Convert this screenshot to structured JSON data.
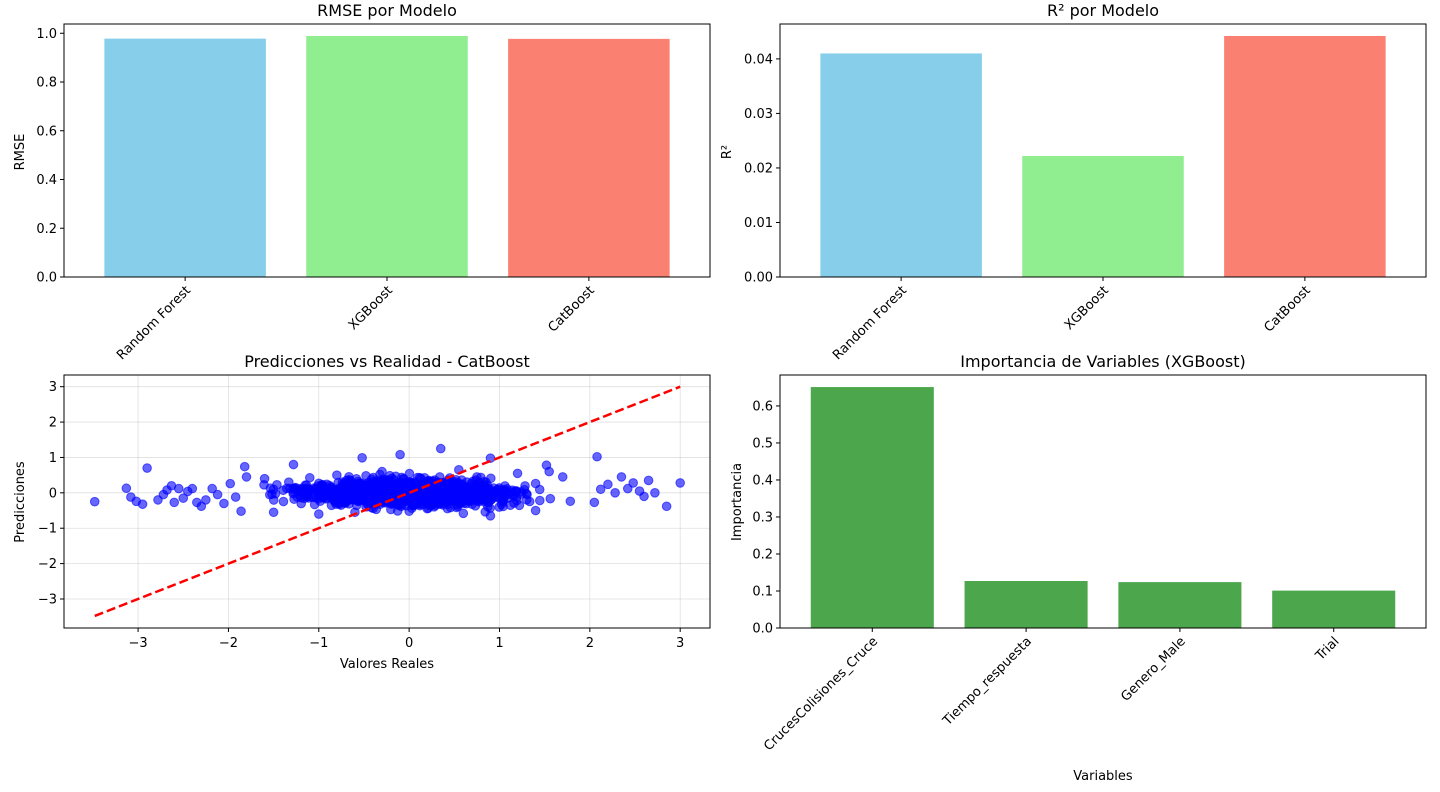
{
  "chart_data": [
    {
      "type": "bar",
      "title": "RMSE por Modelo",
      "xlabel": "",
      "ylabel": "RMSE",
      "categories": [
        "Random Forest",
        "XGBoost",
        "CatBoost"
      ],
      "values": [
        0.978,
        0.989,
        0.977
      ],
      "colors": [
        "#87CEEB",
        "#90EE90",
        "#FA8072"
      ],
      "ylim": [
        0,
        1.038
      ],
      "yticks": [
        0.0,
        0.2,
        0.4,
        0.6,
        0.8,
        1.0
      ],
      "ytick_labels": [
        "0.0",
        "0.2",
        "0.4",
        "0.6",
        "0.8",
        "1.0"
      ]
    },
    {
      "type": "bar",
      "title": "R² por Modelo",
      "xlabel": "",
      "ylabel": "R²",
      "categories": [
        "Random Forest",
        "XGBoost",
        "CatBoost"
      ],
      "values": [
        0.041,
        0.0222,
        0.0442
      ],
      "colors": [
        "#87CEEB",
        "#90EE90",
        "#FA8072"
      ],
      "ylim": [
        0,
        0.0464
      ],
      "yticks": [
        0.0,
        0.01,
        0.02,
        0.03,
        0.04
      ],
      "ytick_labels": [
        "0.00",
        "0.01",
        "0.02",
        "0.03",
        "0.04"
      ]
    },
    {
      "type": "scatter",
      "title": "Predicciones vs Realidad - CatBoost",
      "xlabel": "Valores Reales",
      "ylabel": "Predicciones",
      "xlim": [
        -3.82,
        3.33
      ],
      "ylim": [
        -3.82,
        3.33
      ],
      "xticks": [
        -3,
        -2,
        -1,
        0,
        1,
        2,
        3
      ],
      "yticks": [
        -3,
        -2,
        -1,
        0,
        1,
        2,
        3
      ],
      "xtick_labels": [
        "−3",
        "−2",
        "−1",
        "0",
        "1",
        "2",
        "3"
      ],
      "ytick_labels": [
        "−3",
        "−2",
        "−1",
        "0",
        "1",
        "2",
        "3"
      ],
      "grid": true,
      "point_color": "#0000FF",
      "reference_line": {
        "x": [
          -3.48,
          3.0
        ],
        "y": [
          -3.48,
          3.0
        ],
        "color": "#FF0000",
        "style": "dashed"
      },
      "points": [
        [
          -3.48,
          -0.25
        ],
        [
          -3.13,
          0.13
        ],
        [
          -3.08,
          -0.12
        ],
        [
          -3.02,
          -0.24
        ],
        [
          -2.95,
          -0.32
        ],
        [
          -2.9,
          0.7
        ],
        [
          -2.78,
          -0.2
        ],
        [
          -2.72,
          -0.05
        ],
        [
          -2.68,
          0.08
        ],
        [
          -2.63,
          0.2
        ],
        [
          -2.6,
          -0.27
        ],
        [
          -2.55,
          0.12
        ],
        [
          -2.5,
          -0.15
        ],
        [
          -2.45,
          0.04
        ],
        [
          -2.4,
          0.12
        ],
        [
          -2.35,
          -0.27
        ],
        [
          -2.3,
          -0.38
        ],
        [
          -2.25,
          -0.2
        ],
        [
          -2.18,
          0.12
        ],
        [
          -2.12,
          -0.05
        ],
        [
          -2.05,
          -0.3
        ],
        [
          -1.98,
          0.26
        ],
        [
          -1.92,
          -0.12
        ],
        [
          -1.86,
          -0.52
        ],
        [
          -1.82,
          0.74
        ],
        [
          -1.8,
          0.45
        ],
        [
          -1.28,
          0.8
        ],
        [
          -0.52,
          0.99
        ],
        [
          -0.35,
          0.1
        ],
        [
          -0.1,
          1.08
        ],
        [
          0.35,
          1.25
        ],
        [
          0.55,
          0.65
        ],
        [
          0.85,
          0.3
        ],
        [
          0.9,
          0.98
        ],
        [
          1.52,
          0.78
        ],
        [
          1.55,
          0.6
        ],
        [
          2.08,
          1.02
        ],
        [
          2.05,
          -0.27
        ],
        [
          2.12,
          0.1
        ],
        [
          2.2,
          0.24
        ],
        [
          2.28,
          0.0
        ],
        [
          2.35,
          0.45
        ],
        [
          2.42,
          0.12
        ],
        [
          2.48,
          0.28
        ],
        [
          2.55,
          0.05
        ],
        [
          2.6,
          -0.1
        ],
        [
          2.65,
          0.35
        ],
        [
          2.72,
          0.0
        ],
        [
          2.85,
          -0.38
        ],
        [
          3.0,
          0.28
        ],
        [
          0.0,
          -0.52
        ],
        [
          -0.6,
          -0.55
        ],
        [
          0.6,
          -0.58
        ],
        [
          0.9,
          -0.65
        ],
        [
          -1.0,
          -0.6
        ],
        [
          -1.5,
          -0.55
        ],
        [
          1.4,
          -0.5
        ],
        [
          0.2,
          -0.45
        ],
        [
          -0.3,
          0.6
        ],
        [
          0.75,
          0.45
        ],
        [
          -0.8,
          0.5
        ],
        [
          1.2,
          0.55
        ],
        [
          -1.6,
          0.4
        ],
        [
          1.7,
          0.45
        ],
        [
          0.45,
          0.42
        ]
      ],
      "cloud": {
        "x_range": [
          -2.0,
          2.0
        ],
        "y_center": 0.0,
        "y_spread": 0.32,
        "count": 1500
      }
    },
    {
      "type": "bar",
      "title": "Importancia de Variables (XGBoost)",
      "xlabel": "Variables",
      "ylabel": "Importancia",
      "categories": [
        "CrucesColisiones_Cruce",
        "Tiempo_respuesta",
        "Genero_Male",
        "Trial"
      ],
      "values": [
        0.651,
        0.127,
        0.124,
        0.101
      ],
      "colors": [
        "#4CA64C",
        "#4CA64C",
        "#4CA64C",
        "#4CA64C"
      ],
      "ylim": [
        0,
        0.6836
      ],
      "yticks": [
        0.0,
        0.1,
        0.2,
        0.3,
        0.4,
        0.5,
        0.6
      ],
      "ytick_labels": [
        "0.0",
        "0.1",
        "0.2",
        "0.3",
        "0.4",
        "0.5",
        "0.6"
      ]
    }
  ]
}
